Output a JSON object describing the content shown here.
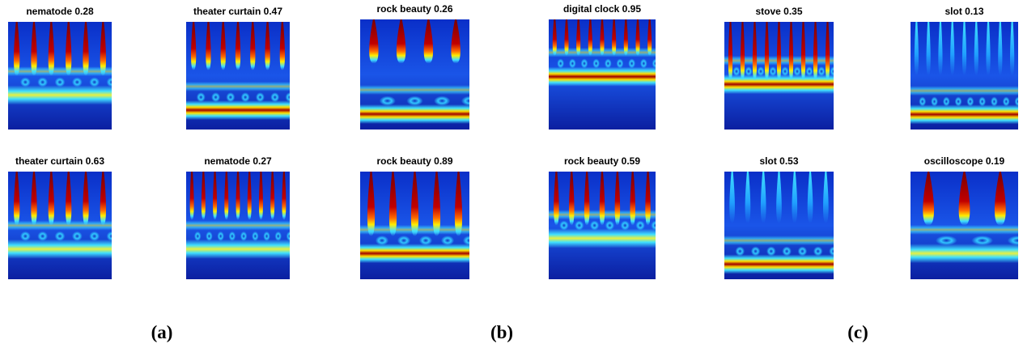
{
  "figure": {
    "panels": [
      {
        "title": "nematode 0.28"
      },
      {
        "title": "theater curtain 0.47"
      },
      {
        "title": "rock beauty 0.26"
      },
      {
        "title": "digital clock 0.95"
      },
      {
        "title": "stove 0.35"
      },
      {
        "title": "slot 0.13"
      },
      {
        "title": "theater curtain 0.63"
      },
      {
        "title": "nematode 0.27"
      },
      {
        "title": "rock beauty 0.89"
      },
      {
        "title": "rock beauty 0.59"
      },
      {
        "title": "slot 0.53"
      },
      {
        "title": "oscilloscope 0.19"
      }
    ],
    "captions": [
      "(a)",
      "(b)",
      "(c)"
    ]
  }
}
